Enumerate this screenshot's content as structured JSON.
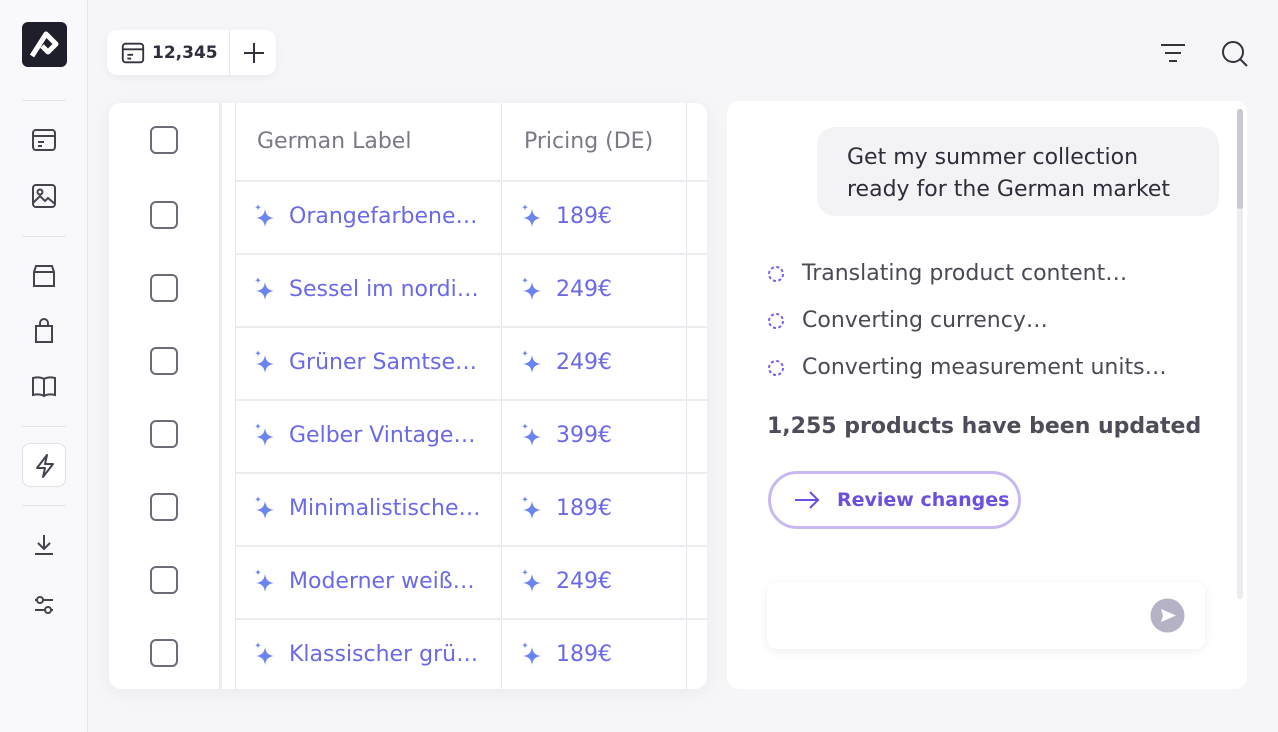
{
  "toolbar": {
    "count": "12,345"
  },
  "table": {
    "columns": [
      "German Label",
      "Pricing (DE)"
    ],
    "rows": [
      [
        "Orangefarbene…",
        "189€"
      ],
      [
        "Sessel im nordi…",
        "249€"
      ],
      [
        "Grüner Samtse…",
        "249€"
      ],
      [
        "Gelber Vintage…",
        "399€"
      ],
      [
        "Minimalistische…",
        "189€"
      ],
      [
        "Moderner weiß…",
        "249€"
      ],
      [
        "Klassischer grü…",
        "189€"
      ]
    ]
  },
  "chat": {
    "message": "Get my summer collection ready for the German market",
    "steps": [
      "Translating product content…",
      "Converting currency…",
      "Converting measurement units…"
    ],
    "summary": "1,255 products have been updated",
    "action": "Review changes"
  }
}
